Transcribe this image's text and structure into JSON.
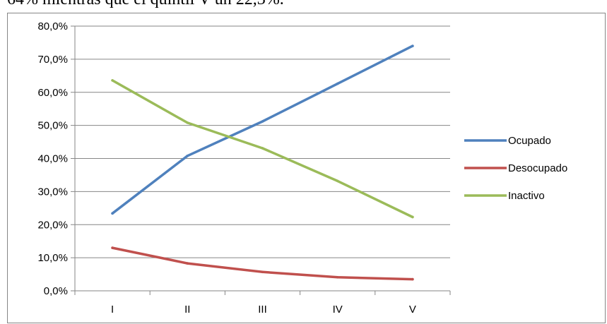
{
  "caption": "64% mientras que el quintil V un 22,3%.",
  "chart_data": {
    "type": "line",
    "categories": [
      "I",
      "II",
      "III",
      "IV",
      "V"
    ],
    "series": [
      {
        "name": "Ocupado",
        "color": "#4F81BD",
        "values": [
          23.4,
          40.8,
          51.2,
          62.6,
          74.0
        ]
      },
      {
        "name": "Desocupado",
        "color": "#C0504D",
        "values": [
          13.0,
          8.3,
          5.7,
          4.1,
          3.5
        ]
      },
      {
        "name": "Inactivo",
        "color": "#9BBB59",
        "values": [
          63.6,
          50.8,
          43.1,
          33.2,
          22.3
        ]
      }
    ],
    "ylim": [
      0,
      80
    ],
    "yticks": [
      "0,0%",
      "10,0%",
      "20,0%",
      "30,0%",
      "40,0%",
      "50,0%",
      "60,0%",
      "70,0%",
      "80,0%"
    ],
    "grid": true,
    "legend": "right"
  }
}
